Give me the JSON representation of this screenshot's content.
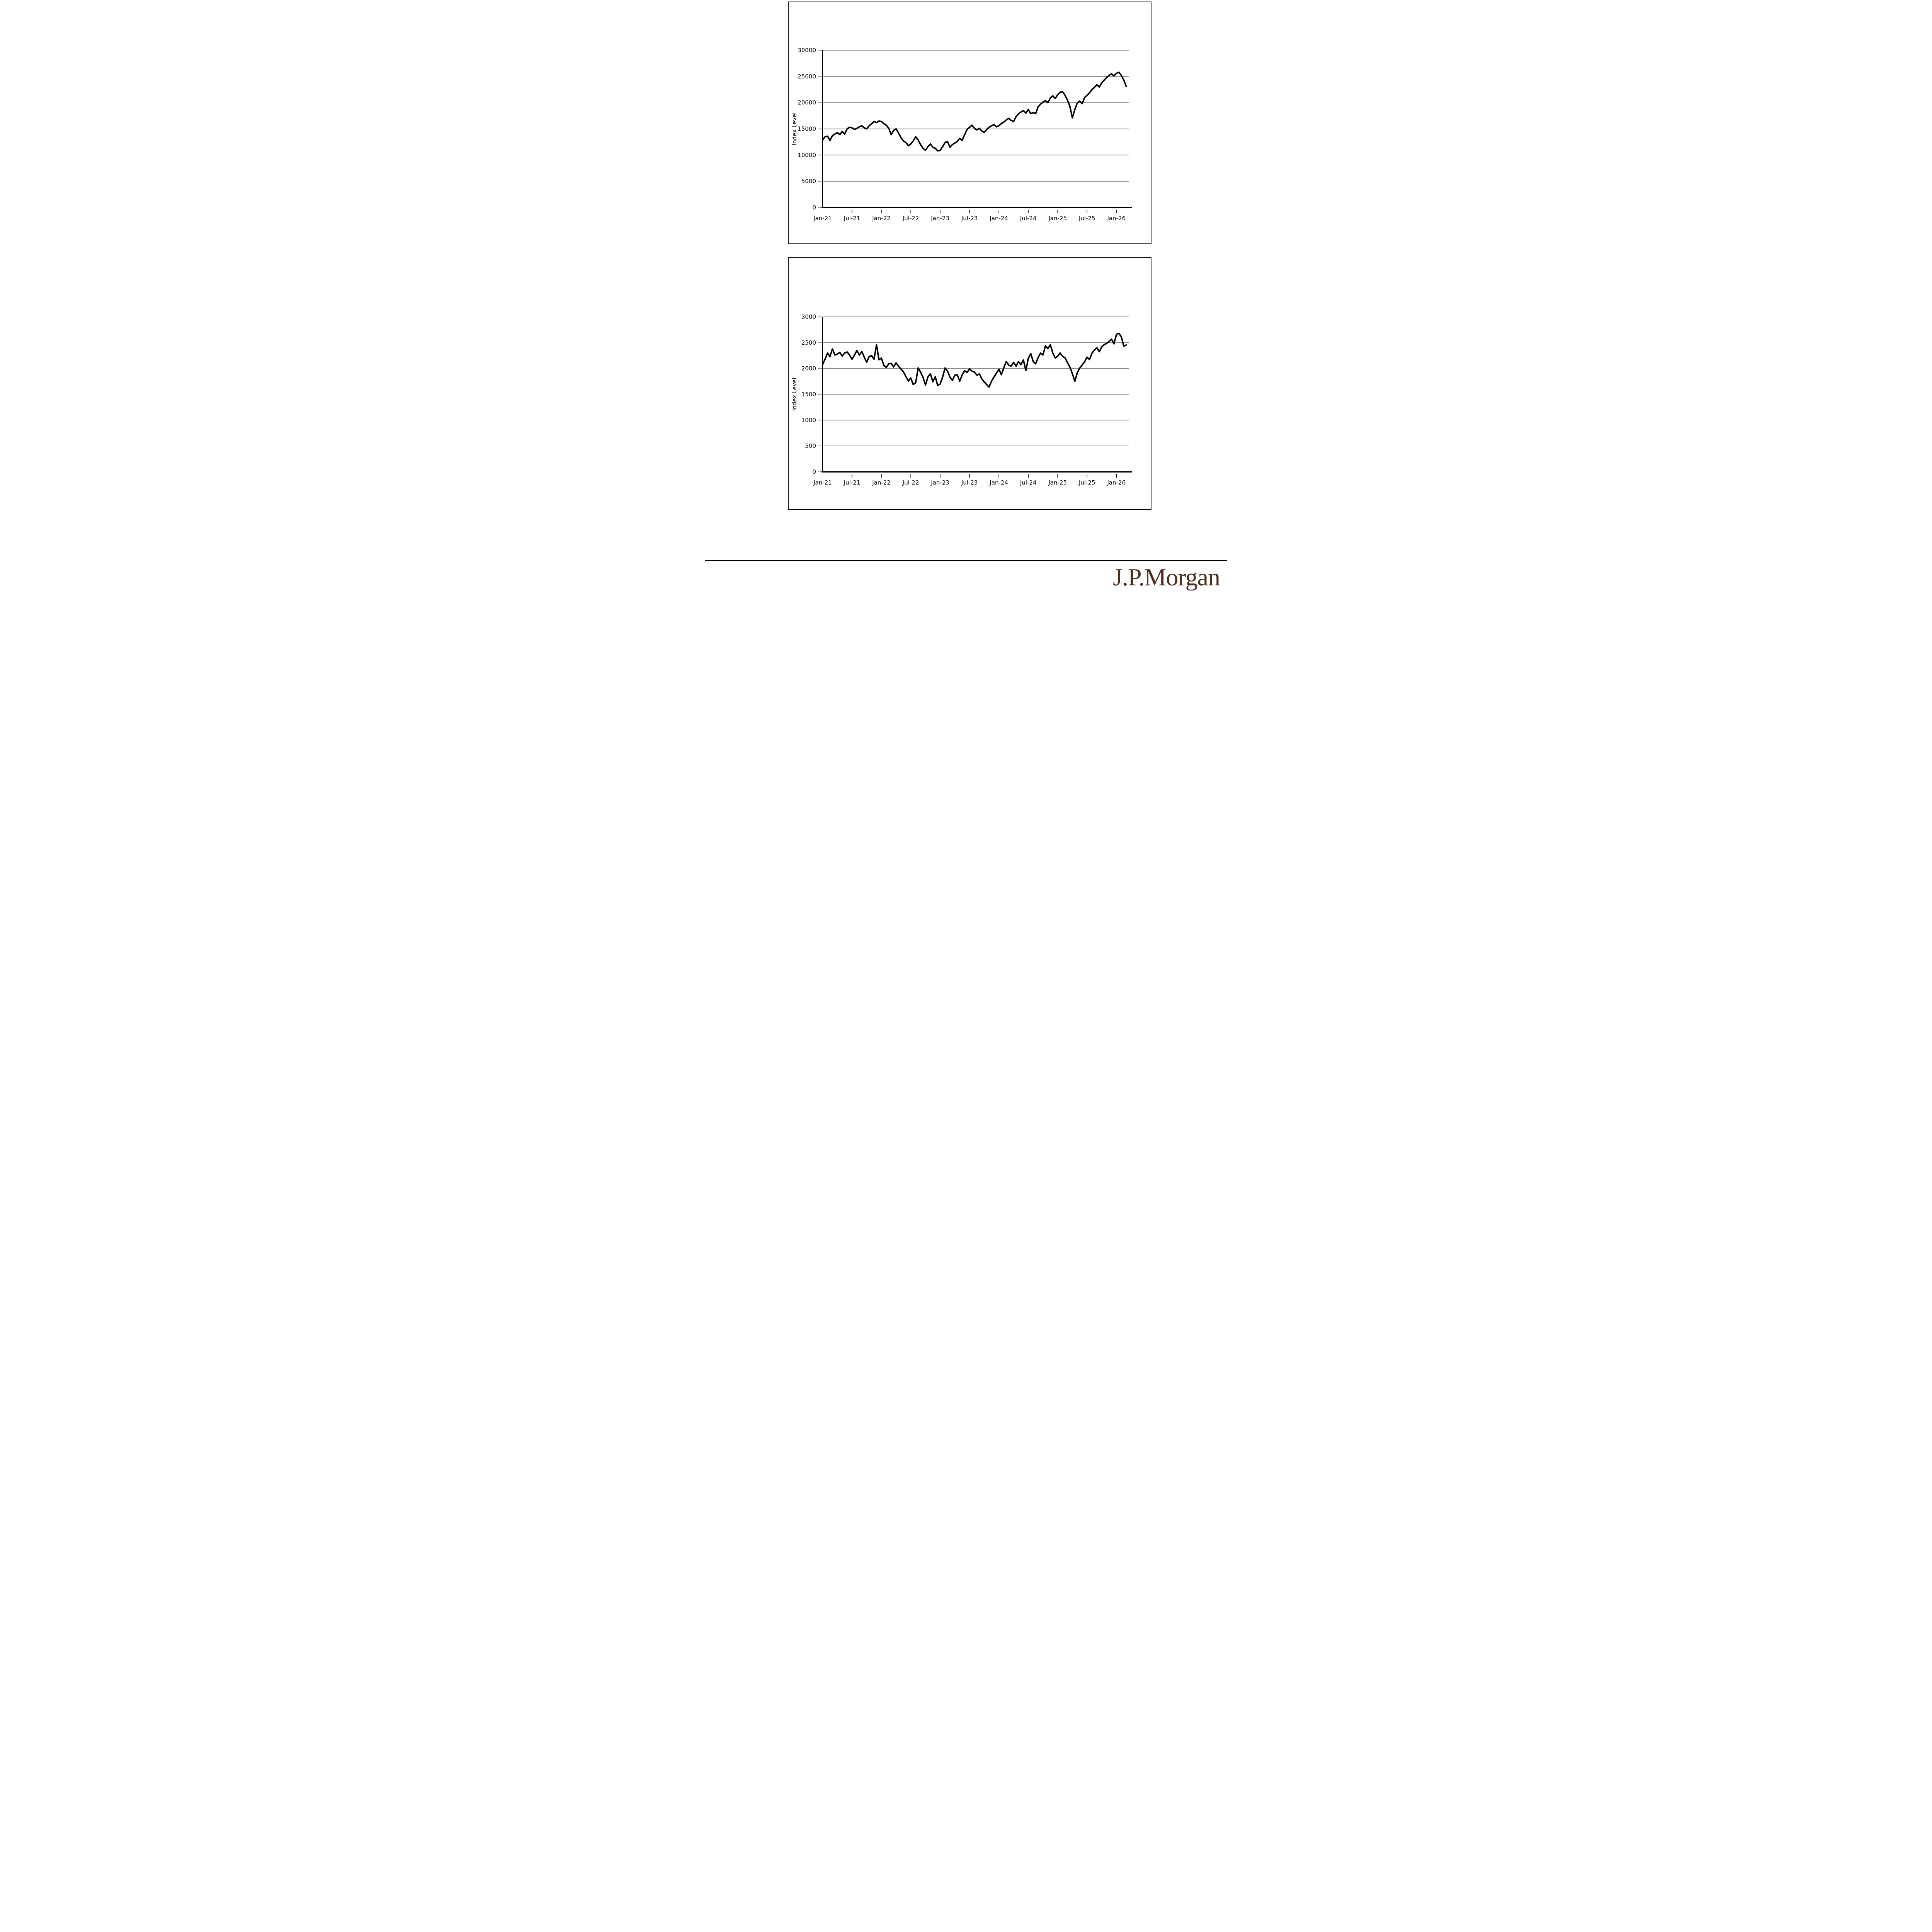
{
  "page": {
    "background": "#ffffff"
  },
  "chart_data": [
    {
      "type": "line",
      "title": "",
      "xlabel": "",
      "ylabel": "Index Level",
      "x_start": "Jan-2021",
      "x_frequency": "semi-monthly",
      "points_per_month": 2,
      "x_tick_labels": [
        "Jan-21",
        "Jul-21",
        "Jan-22",
        "Jul-22",
        "Jan-23",
        "Jul-23",
        "Jan-24",
        "Jul-24",
        "Jan-25",
        "Jul-25",
        "Jan-26"
      ],
      "x_tick_months": [
        0,
        6,
        12,
        18,
        24,
        30,
        36,
        42,
        48,
        54,
        60
      ],
      "xlim_months": [
        0,
        62.5
      ],
      "ylim": [
        0,
        30000
      ],
      "y_ticks": [
        0,
        5000,
        10000,
        15000,
        20000,
        25000,
        30000
      ],
      "grid": "horizontal",
      "legend": "none",
      "line_color": "#000000",
      "grid_color": "#808080",
      "values": [
        12900,
        13500,
        13600,
        12800,
        13700,
        14000,
        14300,
        13900,
        14500,
        14000,
        15000,
        15300,
        15200,
        14900,
        15100,
        15400,
        15600,
        15200,
        15000,
        15600,
        16000,
        16400,
        16200,
        16500,
        16400,
        16000,
        15700,
        15100,
        13900,
        14700,
        15000,
        14200,
        13300,
        12700,
        12400,
        11800,
        12100,
        12700,
        13500,
        12900,
        12000,
        11300,
        10900,
        11600,
        12100,
        11500,
        11300,
        10800,
        10900,
        11600,
        12400,
        12600,
        11500,
        12000,
        12300,
        12600,
        13200,
        12800,
        13900,
        14900,
        15300,
        15700,
        15100,
        14800,
        15100,
        14600,
        14300,
        14900,
        15300,
        15600,
        15800,
        15400,
        15600,
        16000,
        16300,
        16700,
        17000,
        16600,
        16400,
        17300,
        17900,
        18200,
        18500,
        18000,
        18700,
        17900,
        18100,
        17900,
        19200,
        19700,
        20100,
        20400,
        20000,
        20900,
        21300,
        20800,
        21500,
        22000,
        22100,
        21400,
        20500,
        19300,
        17100,
        18700,
        19900,
        20300,
        19800,
        21000,
        21400,
        21900,
        22500,
        22900,
        23400,
        23000,
        23800,
        24300,
        24800,
        25200,
        25500,
        25100,
        25600,
        25800,
        25200,
        24300,
        23100
      ]
    },
    {
      "type": "line",
      "title": "",
      "xlabel": "",
      "ylabel": "Index Level",
      "x_start": "Jan-2021",
      "x_frequency": "semi-monthly",
      "points_per_month": 2,
      "x_tick_labels": [
        "Jan-21",
        "Jul-21",
        "Jan-22",
        "Jul-22",
        "Jan-23",
        "Jul-23",
        "Jan-24",
        "Jul-24",
        "Jan-25",
        "Jul-25",
        "Jan-26"
      ],
      "x_tick_months": [
        0,
        6,
        12,
        18,
        24,
        30,
        36,
        42,
        48,
        54,
        60
      ],
      "xlim_months": [
        0,
        62.5
      ],
      "ylim": [
        0,
        3000
      ],
      "y_ticks": [
        0,
        500,
        1000,
        1500,
        2000,
        2500,
        3000
      ],
      "grid": "horizontal",
      "legend": "none",
      "line_color": "#000000",
      "grid_color": "#808080",
      "values": [
        2080,
        2180,
        2300,
        2230,
        2380,
        2260,
        2280,
        2310,
        2240,
        2300,
        2320,
        2260,
        2180,
        2260,
        2350,
        2260,
        2330,
        2220,
        2120,
        2230,
        2250,
        2180,
        2460,
        2170,
        2200,
        2060,
        2020,
        2090,
        2100,
        2030,
        2110,
        2040,
        1990,
        1935,
        1845,
        1757,
        1815,
        1690,
        1725,
        2010,
        1930,
        1830,
        1680,
        1835,
        1900,
        1745,
        1840,
        1670,
        1700,
        1835,
        2010,
        1950,
        1834,
        1770,
        1870,
        1878,
        1753,
        1878,
        1957,
        1925,
        1990,
        1950,
        1930,
        1870,
        1895,
        1800,
        1740,
        1687,
        1640,
        1758,
        1834,
        1911,
        1985,
        1880,
        2017,
        2135,
        2065,
        2045,
        2120,
        2045,
        2135,
        2075,
        2165,
        1962,
        2195,
        2290,
        2135,
        2090,
        2210,
        2300,
        2262,
        2440,
        2385,
        2460,
        2300,
        2205,
        2237,
        2300,
        2237,
        2205,
        2115,
        2025,
        1900,
        1750,
        1917,
        2008,
        2068,
        2129,
        2220,
        2174,
        2295,
        2356,
        2402,
        2326,
        2417,
        2462,
        2485,
        2523,
        2568,
        2477,
        2659,
        2682,
        2614,
        2432,
        2455
      ]
    }
  ],
  "footer": {
    "logo_text": "J.P.Morgan",
    "logo_color": "#4f2c1e"
  }
}
